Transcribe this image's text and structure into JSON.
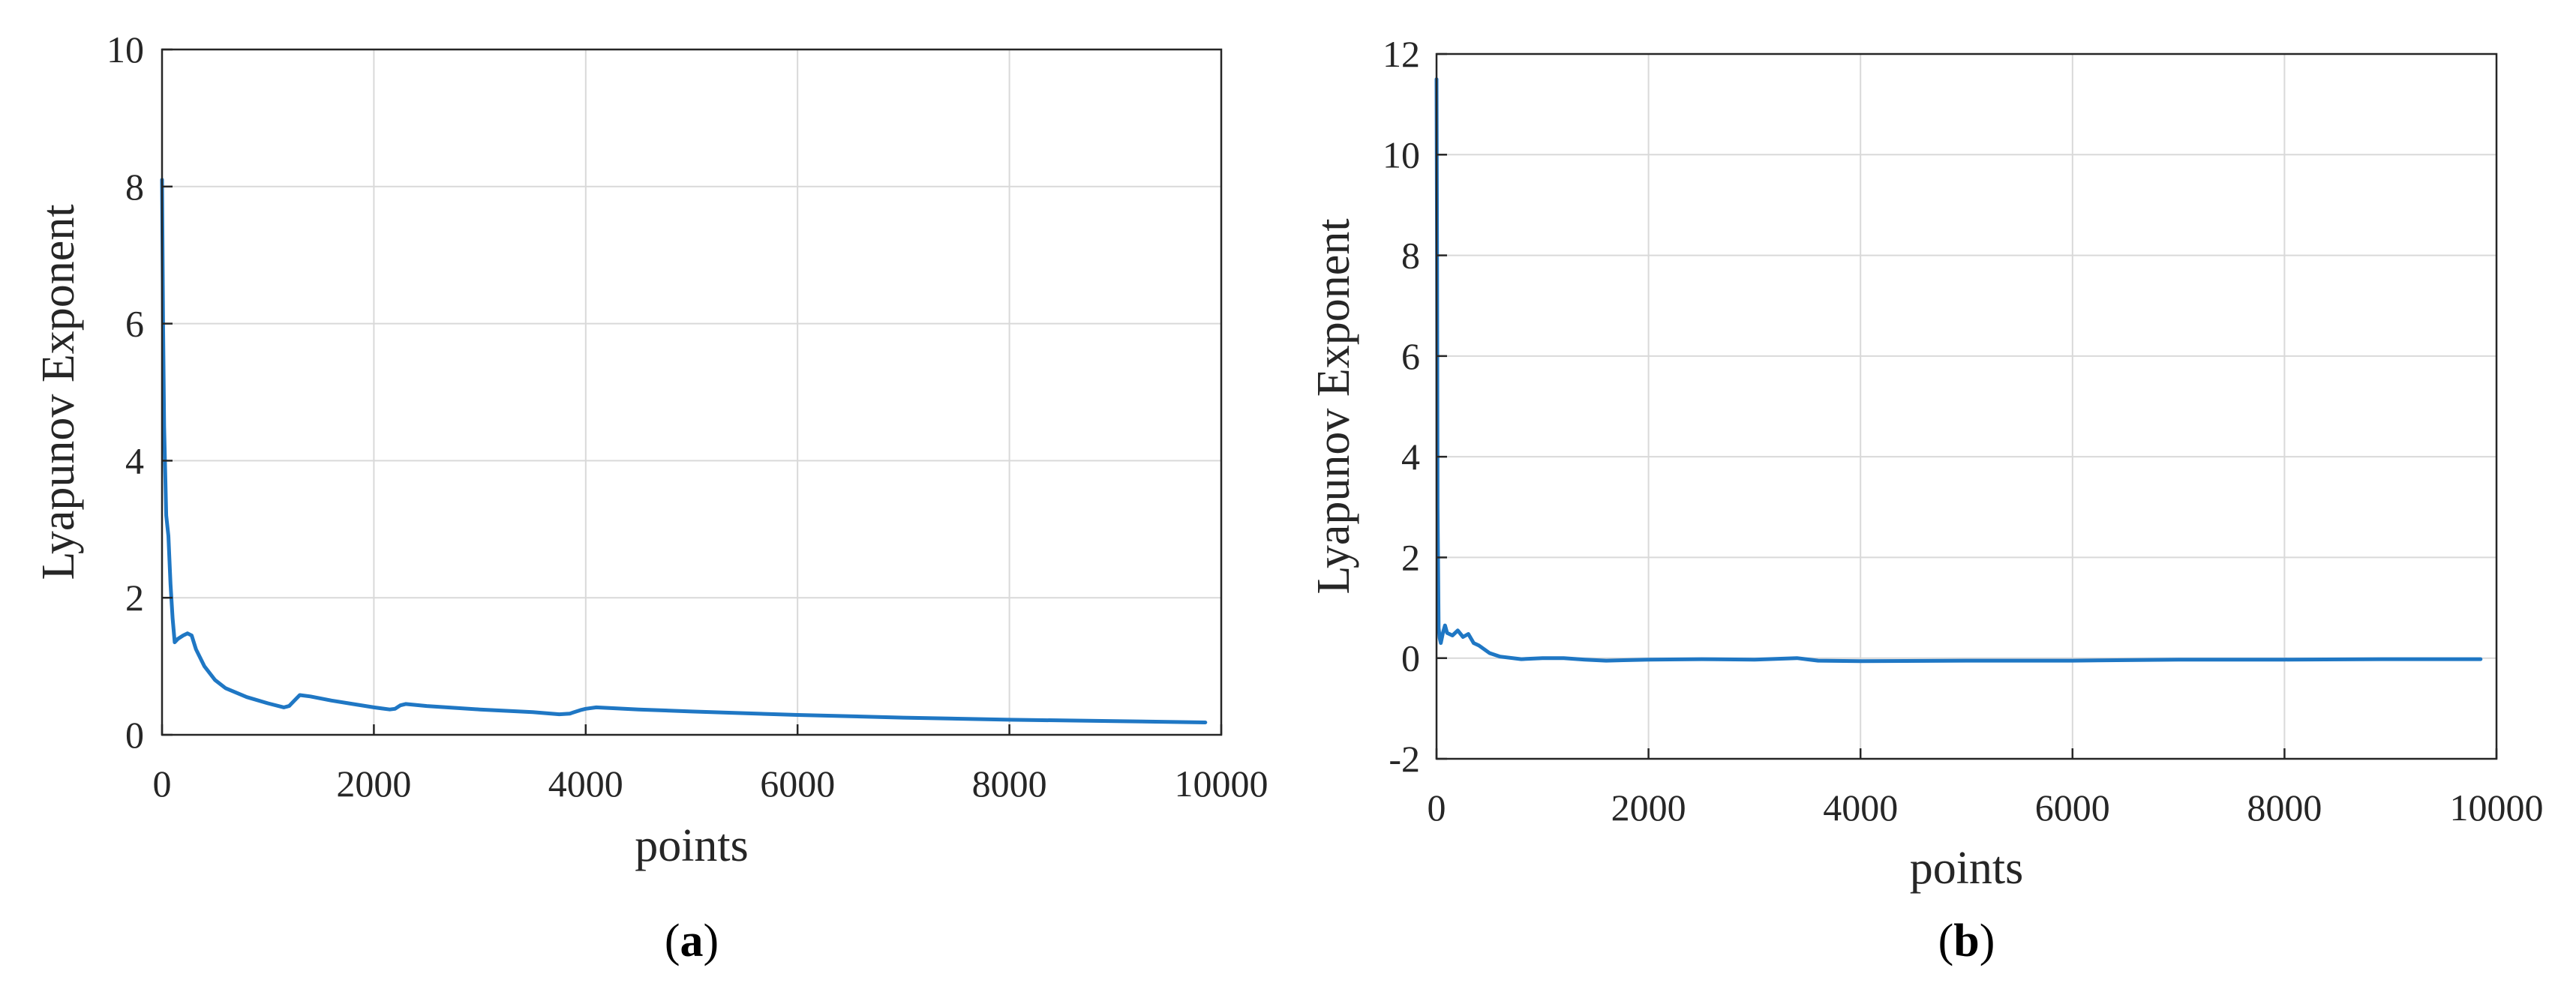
{
  "colors": {
    "series": "#1f77c4",
    "axis": "#262626",
    "grid": "#d9d9d9"
  },
  "chart_data": [
    {
      "type": "line",
      "panel_label": "a",
      "xlabel": "points",
      "ylabel": "Lyapunov Exponent",
      "xlim": [
        0,
        10000
      ],
      "ylim": [
        0,
        10
      ],
      "xticks": [
        0,
        2000,
        4000,
        6000,
        8000,
        10000
      ],
      "yticks": [
        0,
        2,
        4,
        6,
        8,
        10
      ],
      "grid": true,
      "series": [
        {
          "color": "#1f77c4",
          "x": [
            0,
            10,
            20,
            40,
            60,
            80,
            100,
            120,
            150,
            200,
            240,
            280,
            320,
            400,
            500,
            600,
            800,
            1000,
            1150,
            1200,
            1250,
            1300,
            1400,
            1600,
            1800,
            2000,
            2150,
            2200,
            2250,
            2300,
            2500,
            3000,
            3500,
            3750,
            3850,
            3950,
            4000,
            4100,
            4500,
            5000,
            6000,
            7000,
            8000,
            9000,
            9850
          ],
          "y": [
            8.1,
            6.0,
            4.5,
            3.2,
            2.9,
            2.2,
            1.7,
            1.35,
            1.4,
            1.45,
            1.48,
            1.45,
            1.25,
            1.0,
            0.8,
            0.68,
            0.55,
            0.46,
            0.4,
            0.42,
            0.5,
            0.58,
            0.56,
            0.5,
            0.45,
            0.4,
            0.37,
            0.38,
            0.43,
            0.45,
            0.42,
            0.37,
            0.33,
            0.3,
            0.31,
            0.36,
            0.38,
            0.4,
            0.37,
            0.34,
            0.29,
            0.25,
            0.22,
            0.2,
            0.18
          ]
        }
      ]
    },
    {
      "type": "line",
      "panel_label": "b",
      "xlabel": "points",
      "ylabel": "Lyapunov Exponent",
      "xlim": [
        0,
        10000
      ],
      "ylim": [
        -2,
        12
      ],
      "xticks": [
        0,
        2000,
        4000,
        6000,
        8000,
        10000
      ],
      "yticks": [
        -2,
        0,
        2,
        4,
        6,
        8,
        10,
        12
      ],
      "grid": true,
      "series": [
        {
          "color": "#1f77c4",
          "x": [
            0,
            5,
            10,
            20,
            30,
            40,
            60,
            80,
            100,
            150,
            200,
            250,
            300,
            350,
            400,
            500,
            600,
            800,
            1000,
            1200,
            1400,
            1600,
            2000,
            2500,
            3000,
            3400,
            3600,
            4000,
            5000,
            6000,
            7000,
            8000,
            9000,
            9850
          ],
          "y": [
            11.5,
            8.0,
            3.0,
            0.6,
            0.4,
            0.3,
            0.5,
            0.65,
            0.5,
            0.45,
            0.55,
            0.42,
            0.48,
            0.3,
            0.25,
            0.1,
            0.03,
            -0.02,
            0.0,
            0.0,
            -0.03,
            -0.05,
            -0.03,
            -0.02,
            -0.03,
            0.0,
            -0.05,
            -0.06,
            -0.05,
            -0.05,
            -0.03,
            -0.03,
            -0.02,
            -0.02
          ]
        }
      ]
    }
  ]
}
